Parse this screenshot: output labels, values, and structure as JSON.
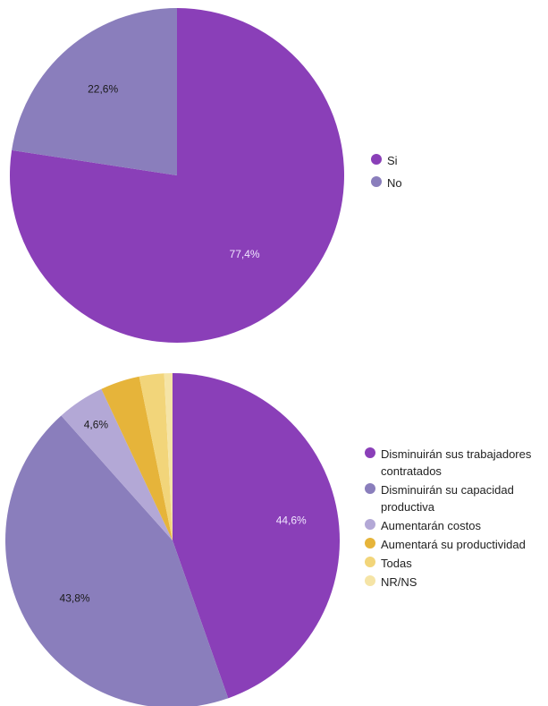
{
  "chart_data": [
    {
      "type": "pie",
      "slices": [
        {
          "label": "Si",
          "value": 77.4,
          "display": "77,4%",
          "color": "#8a3fb8",
          "label_color": "#f0e6ff"
        },
        {
          "label": "No",
          "value": 22.6,
          "display": "22,6%",
          "color": "#8a7ebc",
          "label_color": "#1a1a1a"
        }
      ],
      "legend": [
        "Si",
        "No"
      ],
      "legend_position": "right"
    },
    {
      "type": "pie",
      "slices": [
        {
          "label": "Disminuirán sus trabajadores contratados",
          "value": 44.6,
          "display": "44,6%",
          "color": "#8a3fb8",
          "label_color": "#f0e6ff"
        },
        {
          "label": "Disminuirán su capacidad productiva",
          "value": 43.8,
          "display": "43,8%",
          "color": "#8a7ebc",
          "label_color": "#1a1a1a"
        },
        {
          "label": "Aumentarán costos",
          "value": 4.6,
          "display": "4,6%",
          "color": "#b3a8d6",
          "label_color": "#1a1a1a"
        },
        {
          "label": "Aumentará su productividad",
          "value": 3.8,
          "display": "",
          "color": "#e6b43a",
          "label_color": "#1a1a1a"
        },
        {
          "label": "Todas",
          "value": 2.4,
          "display": "",
          "color": "#f2d57a",
          "label_color": "#1a1a1a"
        },
        {
          "label": "NR/NS",
          "value": 0.8,
          "display": "",
          "color": "#f5e4a6",
          "label_color": "#1a1a1a"
        }
      ],
      "legend": [
        "Disminuirán sus trabajadores contratados",
        "Disminuirán su capacidad productiva",
        "Aumentarán costos",
        "Aumentará su productividad",
        "Todas",
        "NR/NS"
      ],
      "legend_position": "right"
    }
  ]
}
